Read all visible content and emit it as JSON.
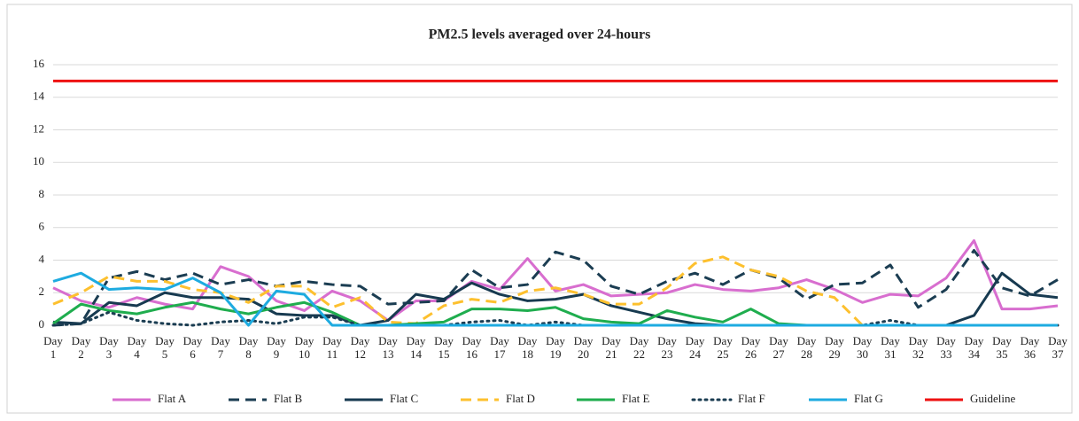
{
  "chart_data": {
    "type": "line",
    "title": "PM2.5 levels averaged over 24-hours",
    "categories": [
      "Day 1",
      "Day 2",
      "Day 3",
      "Day 4",
      "Day 5",
      "Day 6",
      "Day 7",
      "Day 8",
      "Day 9",
      "Day 10",
      "Day 11",
      "Day 12",
      "Day 13",
      "Day 14",
      "Day 15",
      "Day 16",
      "Day 17",
      "Day 18",
      "Day 19",
      "Day 20",
      "Day 21",
      "Day 22",
      "Day 23",
      "Day 24",
      "Day 25",
      "Day 26",
      "Day 27",
      "Day 28",
      "Day 29",
      "Day 30",
      "Day 31",
      "Day 32",
      "Day 33",
      "Day 34",
      "Day 35",
      "Day 36",
      "Day 37"
    ],
    "ylim": [
      0,
      16
    ],
    "yticks": [
      0,
      2,
      4,
      6,
      8,
      10,
      12,
      14,
      16
    ],
    "grid": true,
    "legend": "bottom",
    "series": [
      {
        "name": "Flat A",
        "color": "#d86ecf",
        "dash": "solid",
        "values": [
          2.3,
          1.5,
          1.1,
          1.7,
          1.3,
          1.0,
          3.6,
          3.0,
          1.5,
          0.9,
          2.1,
          1.5,
          0.3,
          1.5,
          1.5,
          2.7,
          2.2,
          4.1,
          2.1,
          2.5,
          1.8,
          1.9,
          2.0,
          2.5,
          2.2,
          2.1,
          2.3,
          2.8,
          2.2,
          1.4,
          1.9,
          1.8,
          2.9,
          5.2,
          1.0,
          1.0,
          1.2
        ]
      },
      {
        "name": "Flat B",
        "color": "#1b3d52",
        "dash": "dashed",
        "values": [
          0.0,
          0.1,
          2.9,
          3.3,
          2.8,
          3.2,
          2.5,
          2.8,
          2.4,
          2.7,
          2.5,
          2.4,
          1.3,
          1.4,
          1.5,
          3.4,
          2.3,
          2.5,
          4.5,
          4.0,
          2.4,
          1.9,
          2.7,
          3.2,
          2.5,
          3.4,
          2.9,
          1.6,
          2.5,
          2.6,
          3.7,
          1.1,
          2.2,
          4.6,
          2.3,
          1.8,
          2.8
        ]
      },
      {
        "name": "Flat C",
        "color": "#173a50",
        "dash": "solid",
        "values": [
          0.2,
          0.1,
          1.4,
          1.2,
          2.0,
          1.7,
          1.7,
          1.6,
          0.7,
          0.6,
          0.6,
          0.0,
          0.3,
          1.9,
          1.6,
          2.6,
          1.9,
          1.5,
          1.6,
          1.9,
          1.2,
          0.8,
          0.4,
          0.1,
          0,
          0,
          0,
          0,
          0,
          0,
          0,
          0,
          0,
          0.6,
          3.2,
          1.9,
          1.7
        ]
      },
      {
        "name": "Flat D",
        "color": "#fdc02e",
        "dash": "dashed",
        "values": [
          1.3,
          2.0,
          3.0,
          2.7,
          2.7,
          2.2,
          2.0,
          1.4,
          2.4,
          2.4,
          1.1,
          1.7,
          0.2,
          0.1,
          1.2,
          1.6,
          1.4,
          2.1,
          2.3,
          1.9,
          1.3,
          1.3,
          2.3,
          3.8,
          4.2,
          3.4,
          3.0,
          2.1,
          1.7,
          0,
          0,
          0,
          0,
          0,
          0,
          0,
          0
        ]
      },
      {
        "name": "Flat E",
        "color": "#1fad4e",
        "dash": "solid",
        "values": [
          0.1,
          1.3,
          0.9,
          0.7,
          1.1,
          1.4,
          1.0,
          0.7,
          1.1,
          1.4,
          0.8,
          0,
          0,
          0.1,
          0.2,
          1.0,
          1.0,
          0.9,
          1.1,
          0.4,
          0.2,
          0.1,
          0.9,
          0.5,
          0.2,
          1.0,
          0.1,
          0,
          0,
          0,
          0,
          0,
          0,
          0,
          0,
          0,
          0
        ]
      },
      {
        "name": "Flat F",
        "color": "#1b3d52",
        "dash": "dotted",
        "values": [
          0,
          0.1,
          0.8,
          0.3,
          0.1,
          0,
          0.2,
          0.3,
          0.1,
          0.5,
          0.5,
          0,
          0,
          0,
          0,
          0.2,
          0.3,
          0,
          0.2,
          0,
          0,
          0,
          0,
          0,
          0,
          0,
          0,
          0,
          0,
          0,
          0.3,
          0,
          0,
          0,
          0,
          0,
          0
        ]
      },
      {
        "name": "Flat G",
        "color": "#1eabe0",
        "dash": "solid",
        "values": [
          2.7,
          3.2,
          2.2,
          2.3,
          2.2,
          2.9,
          2.0,
          0,
          2.1,
          1.9,
          0,
          0,
          0,
          0,
          0,
          0,
          0,
          0,
          0,
          0,
          0,
          0,
          0,
          0,
          0,
          0,
          0,
          0,
          0,
          0,
          0,
          0,
          0,
          0,
          0,
          0,
          0
        ]
      },
      {
        "name": "Guideline",
        "color": "#ee1111",
        "dash": "solid",
        "values": [
          15,
          15,
          15,
          15,
          15,
          15,
          15,
          15,
          15,
          15,
          15,
          15,
          15,
          15,
          15,
          15,
          15,
          15,
          15,
          15,
          15,
          15,
          15,
          15,
          15,
          15,
          15,
          15,
          15,
          15,
          15,
          15,
          15,
          15,
          15,
          15,
          15
        ]
      }
    ]
  }
}
